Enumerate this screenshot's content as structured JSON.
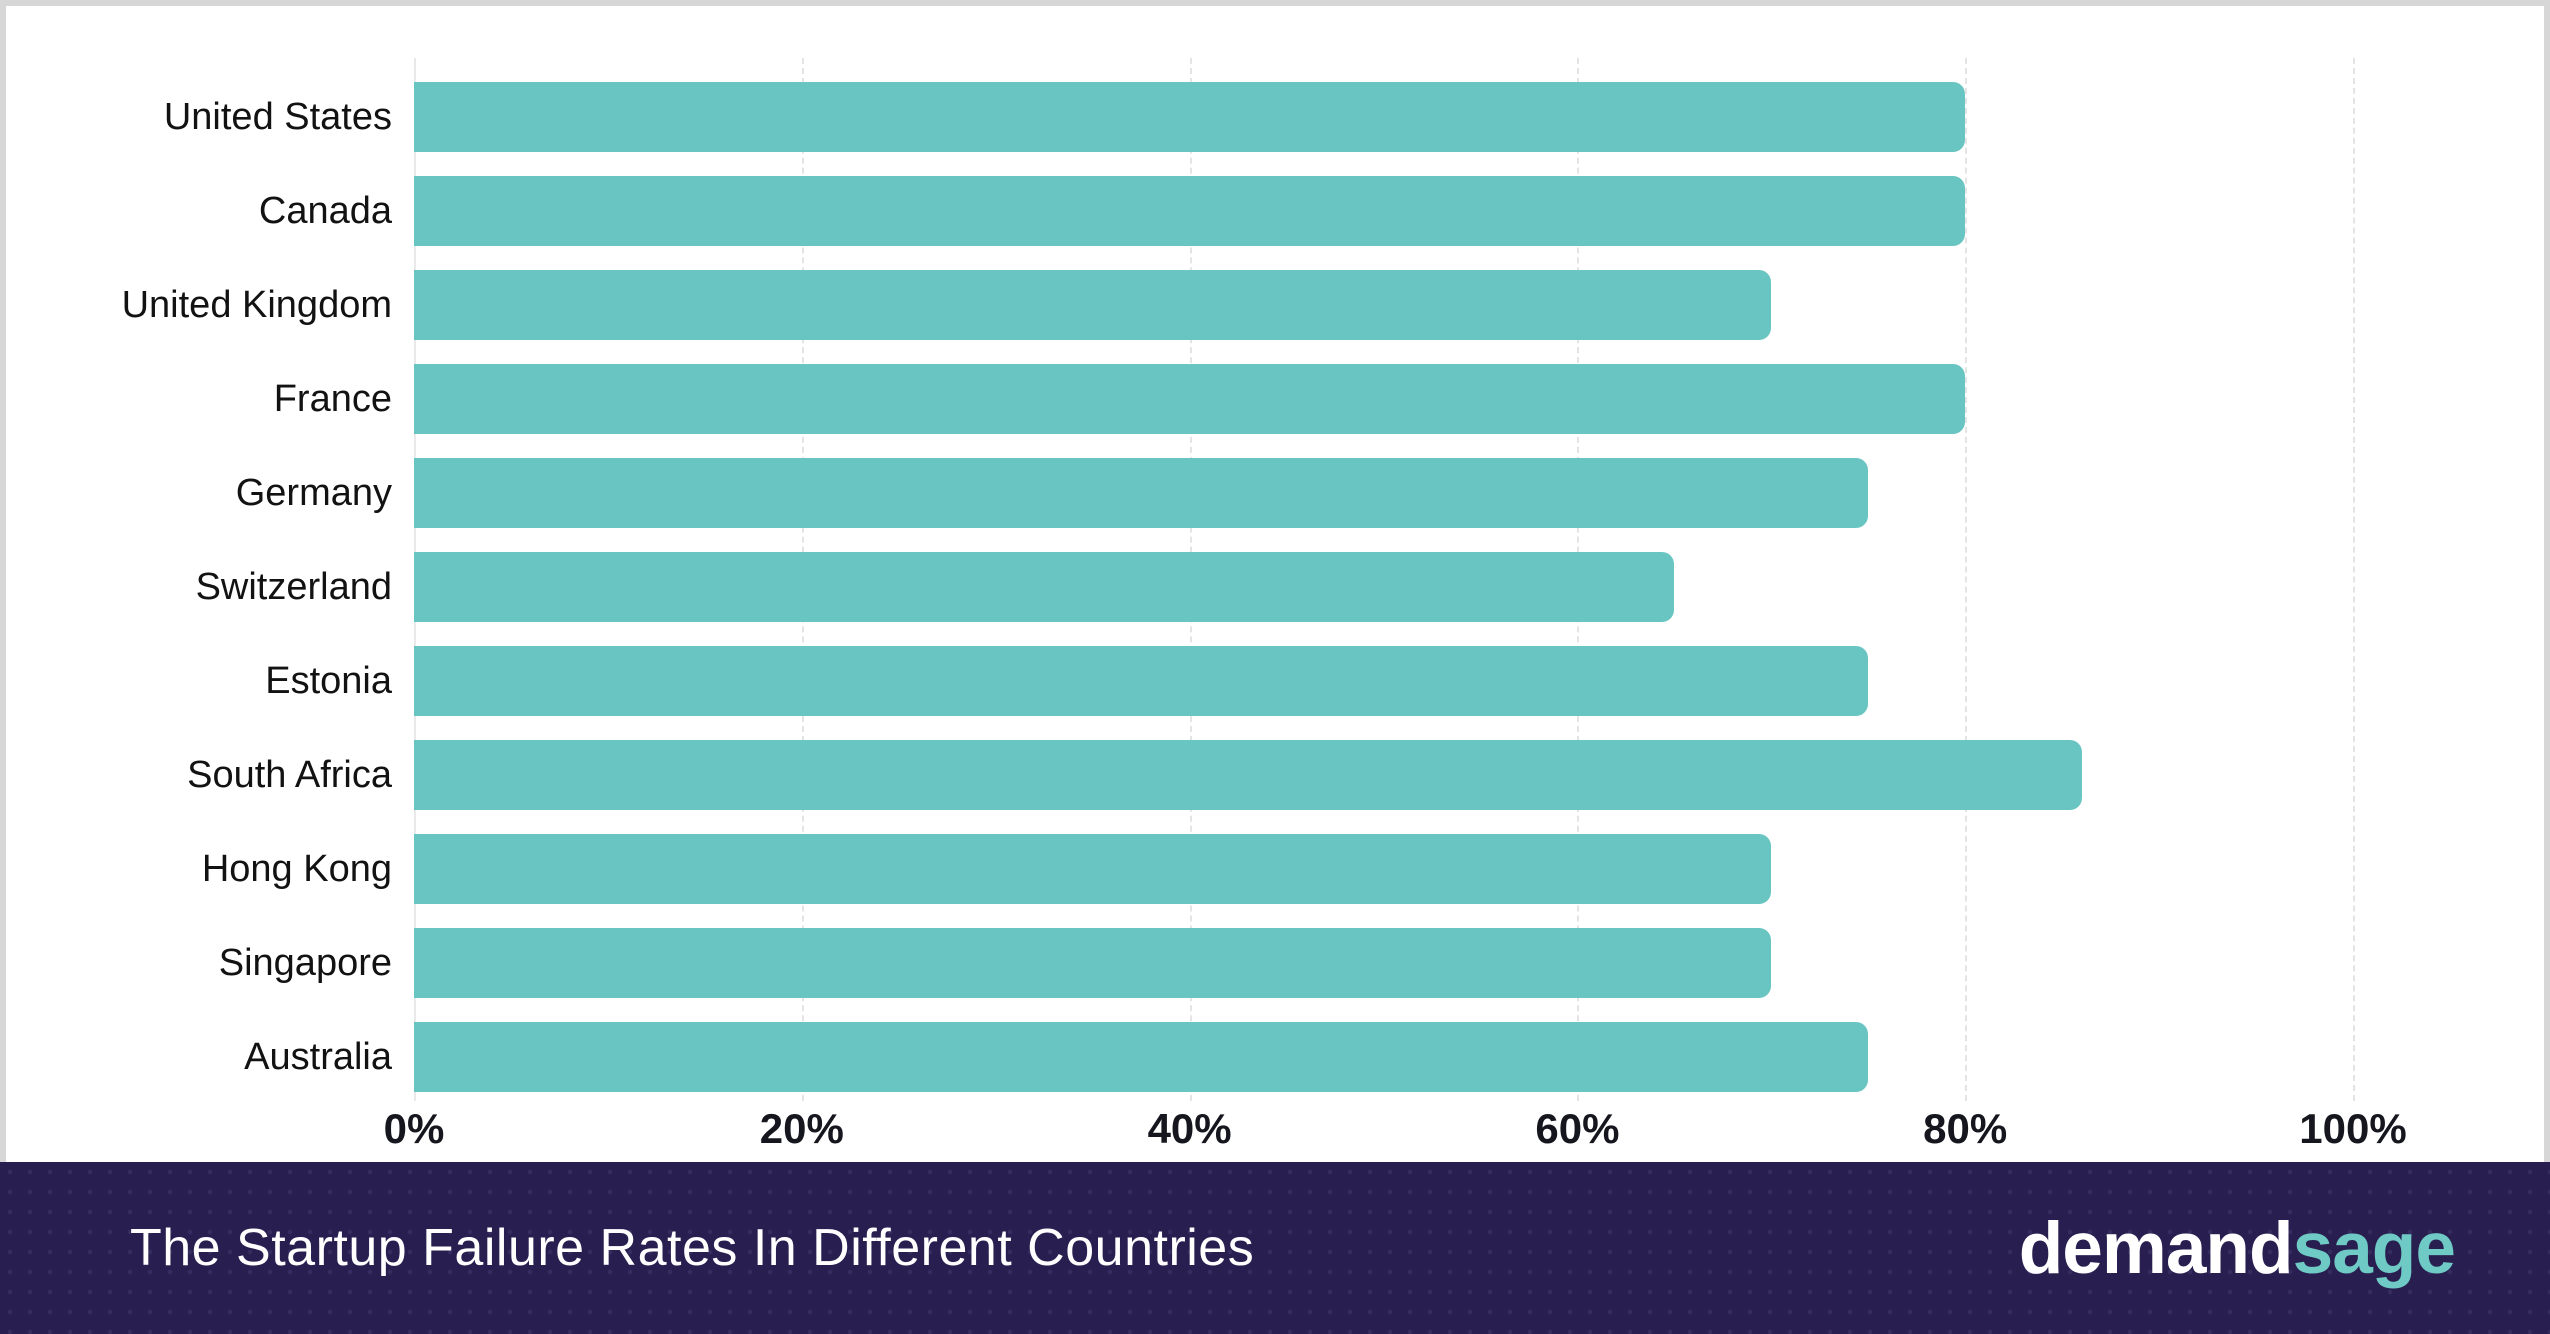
{
  "chart_data": {
    "type": "bar",
    "orientation": "horizontal",
    "title": "The Startup Failure Rates In Different Countries",
    "categories": [
      "United States",
      "Canada",
      "United Kingdom",
      "France",
      "Germany",
      "Switzerland",
      "Estonia",
      "South Africa",
      "Hong Kong",
      "Singapore",
      "Australia"
    ],
    "values": [
      80,
      80,
      70,
      80,
      75,
      65,
      75,
      86,
      70,
      70,
      75
    ],
    "unit": "%",
    "xlabel": "",
    "ylabel": "",
    "xlim": [
      0,
      104
    ],
    "x_ticks": [
      0,
      20,
      40,
      60,
      80,
      100
    ],
    "x_tick_labels": [
      "0%",
      "20%",
      "40%",
      "60%",
      "80%",
      "100%"
    ],
    "grid": "vertical",
    "legend": "none",
    "bar_color": "#69c5c1",
    "label_color": "#121212",
    "tick_color": "#16161f"
  },
  "footer": {
    "title": "The Startup Failure Rates In Different Countries",
    "background_color": "#281f50",
    "title_color": "#ffffff",
    "logo": {
      "first": "demand",
      "second": "sage",
      "first_color": "#ffffff",
      "second_color": "#6fc9c5"
    }
  }
}
